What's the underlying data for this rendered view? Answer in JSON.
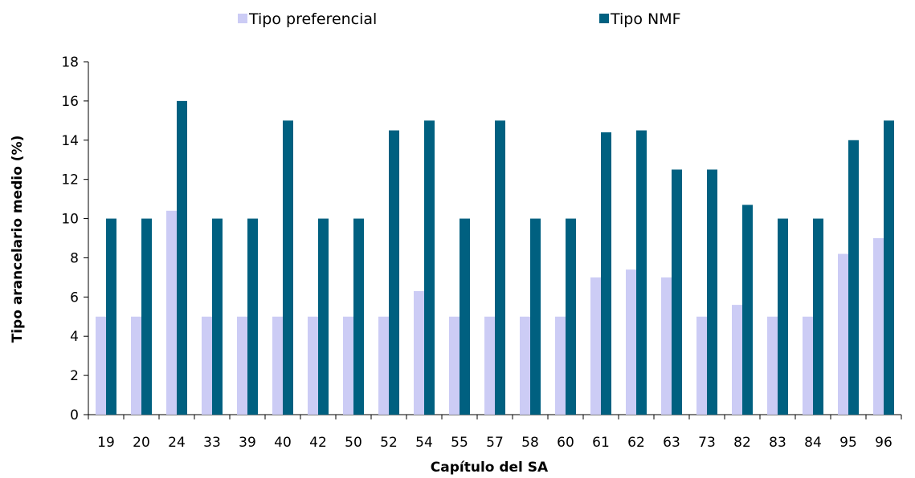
{
  "chart_data": {
    "type": "bar",
    "title": "",
    "xlabel": "Capítulo del SA",
    "ylabel": "Tipo arancelario medio (%)",
    "ylim": [
      0,
      18
    ],
    "yticks": [
      0,
      2,
      4,
      6,
      8,
      10,
      12,
      14,
      16,
      18
    ],
    "grid": false,
    "legend_position": "top",
    "categories": [
      "19",
      "20",
      "24",
      "33",
      "39",
      "40",
      "42",
      "50",
      "52",
      "54",
      "55",
      "57",
      "58",
      "60",
      "61",
      "62",
      "63",
      "73",
      "82",
      "83",
      "84",
      "95",
      "96"
    ],
    "series": [
      {
        "name": "Tipo preferencial",
        "color": "#ccccf5",
        "values": [
          5,
          5,
          10.4,
          5,
          5,
          5,
          5,
          5,
          5,
          6.3,
          5,
          5,
          5,
          5,
          7,
          7.4,
          7,
          5,
          5.6,
          5,
          5,
          8.2,
          9
        ]
      },
      {
        "name": "Tipo NMF",
        "color": "#006080",
        "values": [
          10,
          10,
          16,
          10,
          10,
          15,
          10,
          10,
          14.5,
          15,
          10,
          15,
          10,
          10,
          14.4,
          14.5,
          12.5,
          12.5,
          10.7,
          10,
          10,
          14,
          15
        ]
      }
    ]
  }
}
